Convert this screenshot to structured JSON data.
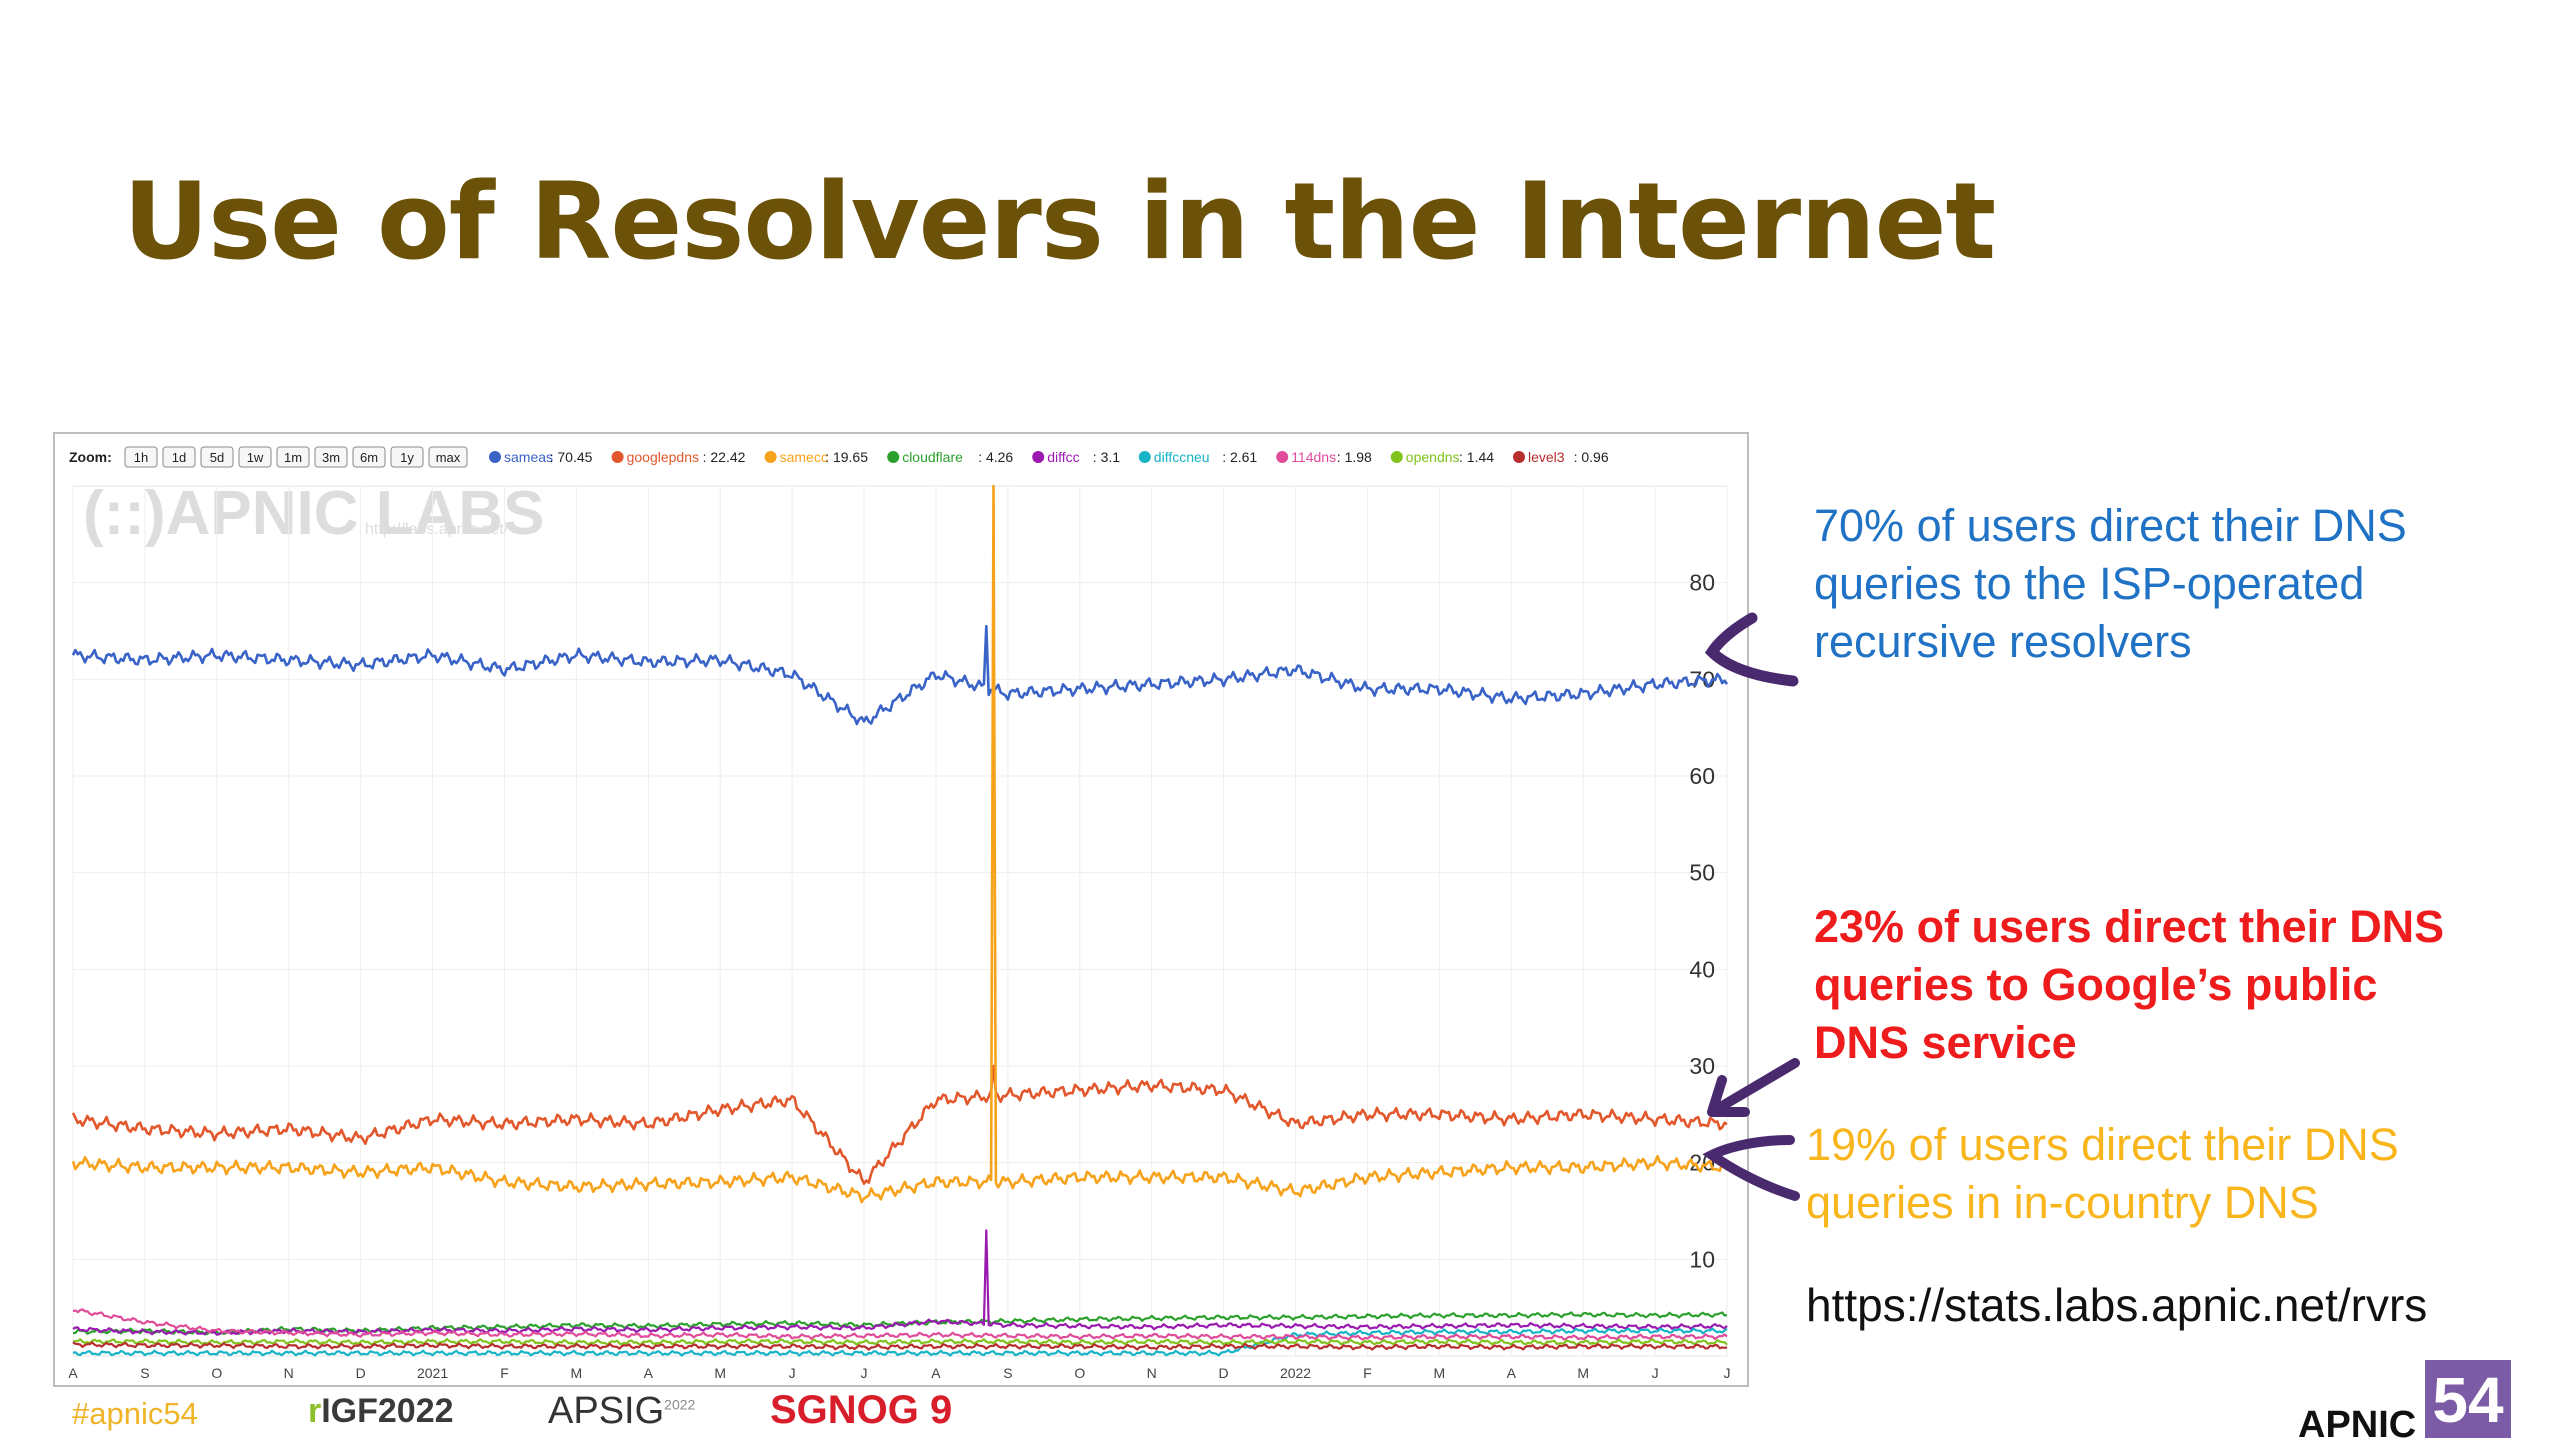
{
  "slide": {
    "title": "Use of Resolvers in the Internet",
    "footer": {
      "hashtag": "#apnic54",
      "logos": [
        "rIGF2022",
        "APSIG",
        "SGNOG 9",
        "APNIC 54"
      ],
      "rigf_prefix": "r",
      "rigf_main": "IGF2022",
      "apsig": "APSIG",
      "apsig_year": "2022",
      "sgnog": "SGNOG 9",
      "apnic_text": "APNIC",
      "apnic_num": "54"
    }
  },
  "callouts": {
    "blue": [
      "70% of users direct their DNS",
      "queries to the ISP-operated",
      "recursive resolvers"
    ],
    "red": [
      "23% of users direct their DNS",
      "queries to Google’s public",
      "DNS service"
    ],
    "orange": [
      "19% of users direct their DNS",
      "queries in in-country DNS"
    ],
    "url": "https://stats.labs.apnic.net/rvrs"
  },
  "colors": {
    "title": "#6b5208",
    "blue_callout": "#1f72c4",
    "red_callout": "#ee1c1c",
    "orange_callout": "#f8b51c",
    "arrow": "#4a2a6e"
  },
  "chart_data": {
    "type": "line",
    "watermark": "(::)APNIC LABS",
    "watermark_url": "http://labs.apnic.net/",
    "zoom": {
      "label": "Zoom:",
      "buttons": [
        "1h",
        "1d",
        "5d",
        "1w",
        "1m",
        "3m",
        "6m",
        "1y",
        "max"
      ]
    },
    "legend_position": "top",
    "ylim": [
      0,
      90
    ],
    "ytick_values": [
      10,
      20,
      30,
      40,
      50,
      60,
      70,
      80
    ],
    "yticks": [
      "10",
      "20",
      "30",
      "40",
      "50",
      "60",
      "70",
      "80"
    ],
    "xlim": [
      0,
      23
    ],
    "xticks": [
      "A",
      "S",
      "O",
      "N",
      "D",
      "2021",
      "F",
      "M",
      "A",
      "M",
      "J",
      "J",
      "A",
      "S",
      "O",
      "N",
      "D",
      "2022",
      "F",
      "M",
      "A",
      "M",
      "J",
      "J"
    ],
    "grid": true,
    "series": [
      {
        "name": "sameas",
        "legend_value": "70.45",
        "color": "#3a63c8",
        "values": [
          72.5,
          72.0,
          72.5,
          72.0,
          71.5,
          72.5,
          71.0,
          72.5,
          71.8,
          72.0,
          70.5,
          65.5,
          70.5,
          68.5,
          69.0,
          69.5,
          70.0,
          71.0,
          69.0,
          69.0,
          68.0,
          68.5,
          69.5,
          70.0
        ],
        "spike": {
          "x": 12.7,
          "y": 75.5
        }
      },
      {
        "name": "googlepdns",
        "legend_value": "22.42",
        "color": "#e2572b",
        "values": [
          24.5,
          23.5,
          23.0,
          23.5,
          22.5,
          24.5,
          24.0,
          24.5,
          24.0,
          25.5,
          26.5,
          18.0,
          26.5,
          27.0,
          27.5,
          28.0,
          27.5,
          24.0,
          25.0,
          25.0,
          24.5,
          25.0,
          24.5,
          24.0
        ],
        "spike": {
          "x": 12.8,
          "y": 30.0
        }
      },
      {
        "name": "samecc",
        "legend_value": "19.65",
        "color": "#f7a21b",
        "values": [
          20.0,
          19.5,
          19.5,
          19.5,
          19.0,
          19.5,
          18.0,
          17.5,
          17.8,
          18.0,
          18.5,
          16.5,
          18.0,
          18.0,
          18.5,
          18.5,
          18.5,
          17.0,
          18.5,
          19.0,
          19.5,
          19.5,
          20.0,
          19.5
        ],
        "spike": {
          "x": 12.8,
          "y": 90
        }
      },
      {
        "name": "cloudflare",
        "legend_value": "4.26",
        "color": "#2ca02c",
        "values": [
          2.5,
          2.6,
          2.4,
          2.8,
          2.6,
          2.9,
          3.0,
          3.2,
          3.1,
          3.3,
          3.4,
          3.2,
          3.5,
          3.6,
          3.8,
          3.9,
          4.0,
          4.0,
          4.1,
          4.2,
          4.2,
          4.3,
          4.2,
          4.3
        ]
      },
      {
        "name": "diffcc",
        "legend_value": "3.1",
        "color": "#9a1ab0",
        "values": [
          2.8,
          2.5,
          2.4,
          2.6,
          2.5,
          2.7,
          2.6,
          2.8,
          2.7,
          2.9,
          3.0,
          2.9,
          3.6,
          3.2,
          3.1,
          3.0,
          3.2,
          3.1,
          3.0,
          3.1,
          3.2,
          3.1,
          3.0,
          3.1
        ],
        "spike": {
          "x": 12.7,
          "y": 13.0
        }
      },
      {
        "name": "diffccneu",
        "legend_value": "2.61",
        "color": "#17b3c6",
        "values": [
          0.3,
          0.3,
          0.3,
          0.3,
          0.3,
          0.3,
          0.3,
          0.3,
          0.3,
          0.3,
          0.3,
          0.3,
          0.3,
          0.3,
          0.3,
          0.3,
          0.3,
          2.2,
          2.4,
          2.5,
          2.5,
          2.6,
          2.6,
          2.6
        ]
      },
      {
        "name": "114dns",
        "legend_value": "1.98",
        "color": "#e04b9a",
        "values": [
          4.8,
          3.5,
          2.6,
          2.4,
          2.2,
          2.4,
          2.2,
          2.3,
          2.1,
          2.2,
          2.0,
          2.1,
          2.2,
          2.1,
          2.0,
          2.1,
          2.0,
          2.0,
          1.9,
          2.0,
          2.0,
          1.9,
          2.0,
          2.0
        ]
      },
      {
        "name": "opendns",
        "legend_value": "1.44",
        "color": "#7fc31c",
        "values": [
          1.5,
          1.5,
          1.4,
          1.5,
          1.4,
          1.5,
          1.5,
          1.4,
          1.4,
          1.5,
          1.5,
          1.4,
          1.5,
          1.5,
          1.4,
          1.5,
          1.4,
          1.5,
          1.4,
          1.5,
          1.4,
          1.4,
          1.5,
          1.4
        ]
      },
      {
        "name": "level3",
        "legend_value": "0.96",
        "color": "#b82d2d",
        "values": [
          1.2,
          1.1,
          1.1,
          1.0,
          1.0,
          1.1,
          1.0,
          1.0,
          1.0,
          1.0,
          1.0,
          0.9,
          1.0,
          1.0,
          1.0,
          0.9,
          1.0,
          1.0,
          0.9,
          1.0,
          0.9,
          1.0,
          1.0,
          0.96
        ]
      }
    ]
  }
}
